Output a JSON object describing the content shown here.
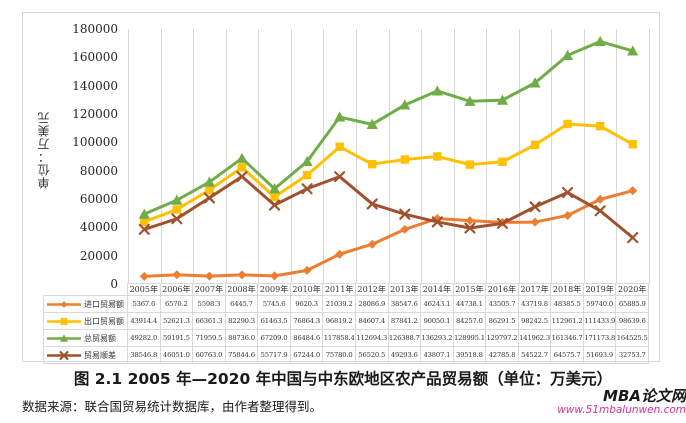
{
  "chart_data": {
    "type": "line",
    "title": "",
    "y_axis_label": "单位：万美元",
    "x_axis_label": "",
    "ylim": [
      0,
      180000
    ],
    "y_ticks": [
      "0",
      "20000",
      "40000",
      "60000",
      "80000",
      "100000",
      "120000",
      "140000",
      "160000",
      "180000"
    ],
    "grid": "vertical-only",
    "grid_color": "#d9d9d9",
    "legend_position": "data-table-left",
    "categories": [
      "2005年",
      "2006年",
      "2007年",
      "2008年",
      "2009年",
      "2010年",
      "2011年",
      "2012年",
      "2013年",
      "2014年",
      "2015年",
      "2016年",
      "2017年",
      "2018年",
      "2019年",
      "2020年"
    ],
    "series": [
      {
        "key": "import",
        "name": "进口贸易额",
        "color": "#ED7D31",
        "marker": "diamond",
        "values": [
          "5367.6",
          "6570.2",
          "5598.3",
          "6445.7",
          "5745.6",
          "9620.3",
          "21039.2",
          "28086.9",
          "38547.6",
          "46243.1",
          "44738.1",
          "43505.7",
          "43719.8",
          "48385.5",
          "59740.0",
          "65885.9"
        ]
      },
      {
        "key": "export",
        "name": "出口贸易额",
        "color": "#FFC000",
        "marker": "square",
        "values": [
          "43914.4",
          "52621.3",
          "66361.3",
          "82290.3",
          "61463.5",
          "76864.3",
          "96819.2",
          "84607.4",
          "87841.2",
          "90050.1",
          "84257.0",
          "86291.5",
          "98242.5",
          "112961.2",
          "111433.9",
          "98639.6"
        ]
      },
      {
        "key": "total",
        "name": "总贸易额",
        "color": "#70AD47",
        "marker": "triangle",
        "values": [
          "49282.0",
          "59191.5",
          "71959.5",
          "88736.0",
          "67209.0",
          "86484.6",
          "117858.4",
          "112694.3",
          "126388.7",
          "136293.2",
          "128995.1",
          "129797.2",
          "141962.3",
          "161346.7",
          "171173.8",
          "164525.5"
        ]
      },
      {
        "key": "surplus",
        "name": "贸易顺差",
        "color": "#A0522D",
        "marker": "x",
        "values": [
          "38546.8",
          "46051.0",
          "60763.0",
          "75844.6",
          "55717.9",
          "67244.0",
          "75780.0",
          "56520.5",
          "49293.6",
          "43807.1",
          "39518.8",
          "42785.8",
          "54522.7",
          "64575.7",
          "51693.9",
          "32753.7"
        ]
      }
    ]
  },
  "caption": "图 2.1  2005 年—2020 年中国与中东欧地区农产品贸易额（单位：万美元）",
  "source_note": "数据来源：联合国贸易统计数据库，由作者整理得到。",
  "watermark": {
    "title": "MBA论文网",
    "url": "www.51mbalunwen.com",
    "title_color": "#1a1a1a",
    "url_color": "#d6309c"
  }
}
